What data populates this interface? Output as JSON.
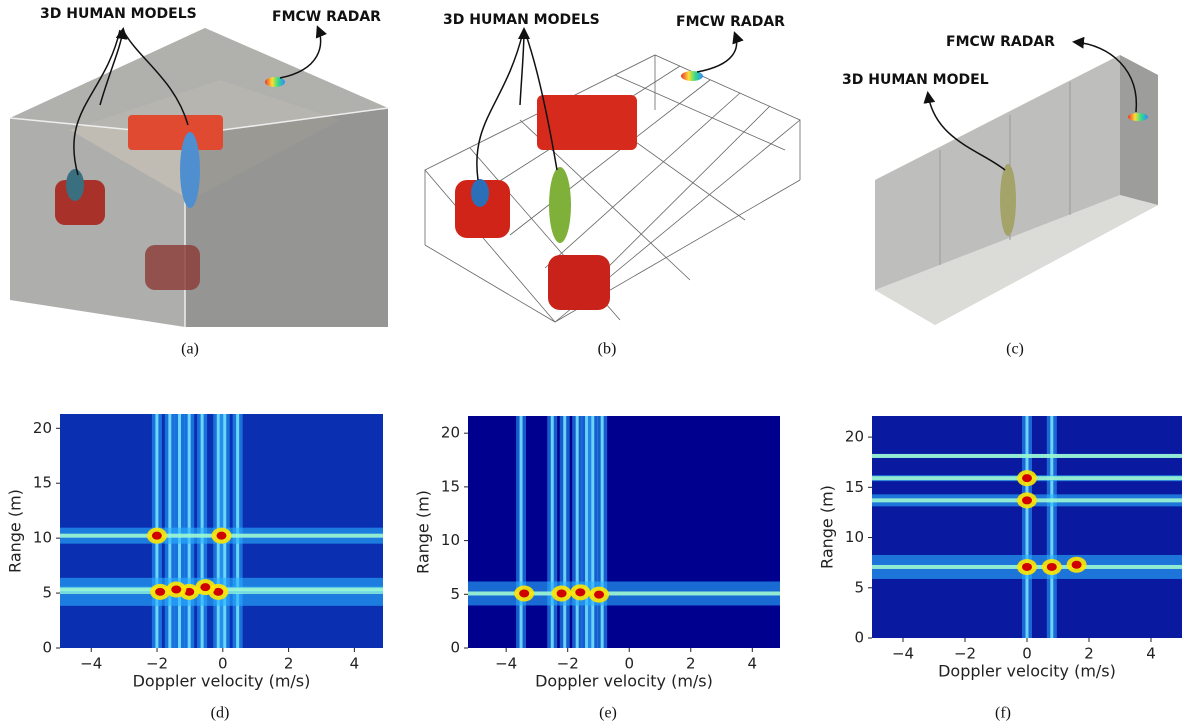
{
  "panels": [
    {
      "caption": "(a)",
      "annotations": [
        "3D  HUMAN MODELS",
        "FMCW RADAR"
      ]
    },
    {
      "caption": "(b)",
      "annotations": [
        "3D  HUMAN MODELS",
        "FMCW RADAR"
      ]
    },
    {
      "caption": "(c)",
      "annotations": [
        "FMCW RADAR",
        "3D  HUMAN MODEL"
      ]
    }
  ],
  "plots": [
    {
      "caption": "(d)",
      "x_label": "Doppler velocity (m/s)",
      "y_label": "Range (m)",
      "xlim": [
        -4.95,
        4.87
      ],
      "ylim": [
        0,
        21.3
      ],
      "xticks": [
        {
          "value": -4,
          "label": "−4"
        },
        {
          "value": -2,
          "label": "−2"
        },
        0,
        2,
        4
      ],
      "yticks": [
        0,
        5,
        10,
        15,
        20
      ]
    },
    {
      "caption": "(e)",
      "x_label": "Doppler velocity (m/s)",
      "y_label": "Range (m)",
      "xlim": [
        -5.24,
        4.9
      ],
      "ylim": [
        0,
        21.6
      ],
      "xticks": [
        {
          "value": -4,
          "label": "−4"
        },
        {
          "value": -2,
          "label": "−2"
        },
        0,
        2,
        4
      ],
      "yticks": [
        0,
        5,
        10,
        15,
        20
      ]
    },
    {
      "caption": "(f)",
      "x_label": "Doppler velocity (m/s)",
      "y_label": "Range (m)",
      "xlim": [
        -5.0,
        5.0
      ],
      "ylim": [
        0,
        22.1
      ],
      "xticks": [
        {
          "value": -4,
          "label": "−4"
        },
        {
          "value": -2,
          "label": "−2"
        },
        0,
        2,
        4
      ],
      "yticks": [
        0,
        5,
        10,
        15,
        20
      ]
    }
  ]
}
